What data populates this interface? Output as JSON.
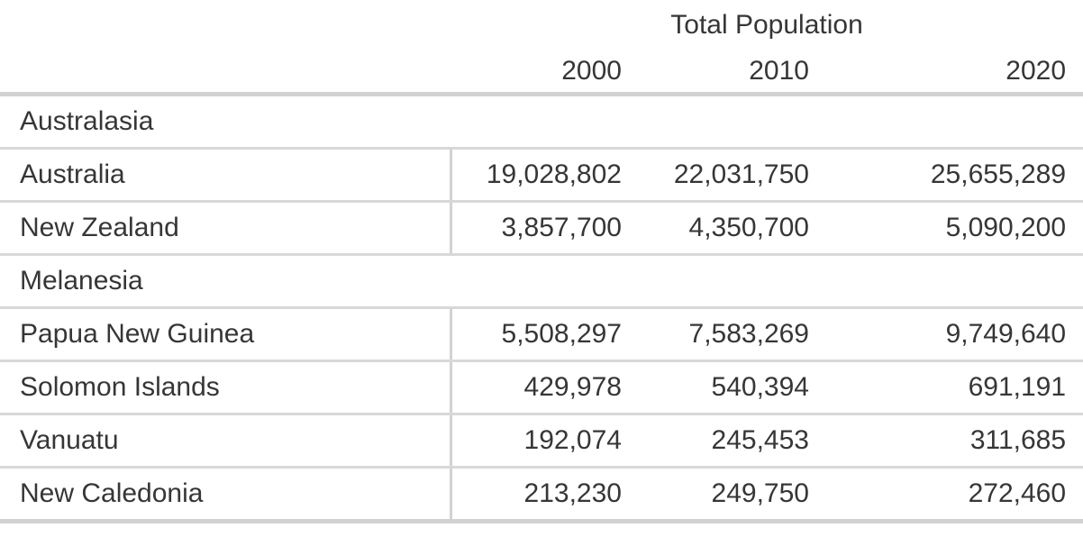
{
  "table": {
    "title": "Total Population",
    "years": [
      "2000",
      "2010",
      "2020"
    ],
    "sections": [
      {
        "label": "Australasia",
        "rows": [
          {
            "name": "Australia",
            "values": [
              "19,028,802",
              "22,031,750",
              "25,655,289"
            ]
          },
          {
            "name": "New Zealand",
            "values": [
              "3,857,700",
              "4,350,700",
              "5,090,200"
            ]
          }
        ]
      },
      {
        "label": "Melanesia",
        "rows": [
          {
            "name": "Papua New Guinea",
            "values": [
              "5,508,297",
              "7,583,269",
              "9,749,640"
            ]
          },
          {
            "name": "Solomon Islands",
            "values": [
              "429,978",
              "540,394",
              "691,191"
            ]
          },
          {
            "name": "Vanuatu",
            "values": [
              "192,074",
              "245,453",
              "311,685"
            ]
          },
          {
            "name": "New Caledonia",
            "values": [
              "213,230",
              "249,750",
              "272,460"
            ]
          }
        ]
      }
    ],
    "colors": {
      "text": "#363636",
      "rule_strong": "#d2d2d2",
      "rule_light": "#d8d8d8",
      "background": "#ffffff"
    }
  },
  "chart_data": {
    "type": "table",
    "title": "Total Population",
    "categories": [
      "2000",
      "2010",
      "2020"
    ],
    "series": [
      {
        "name": "Australia",
        "group": "Australasia",
        "values": [
          19028802,
          22031750,
          25655289
        ]
      },
      {
        "name": "New Zealand",
        "group": "Australasia",
        "values": [
          3857700,
          4350700,
          5090200
        ]
      },
      {
        "name": "Papua New Guinea",
        "group": "Melanesia",
        "values": [
          5508297,
          7583269,
          9749640
        ]
      },
      {
        "name": "Solomon Islands",
        "group": "Melanesia",
        "values": [
          429978,
          540394,
          691191
        ]
      },
      {
        "name": "Vanuatu",
        "group": "Melanesia",
        "values": [
          192074,
          245453,
          311685
        ]
      },
      {
        "name": "New Caledonia",
        "group": "Melanesia",
        "values": [
          213230,
          249750,
          272460
        ]
      }
    ]
  }
}
